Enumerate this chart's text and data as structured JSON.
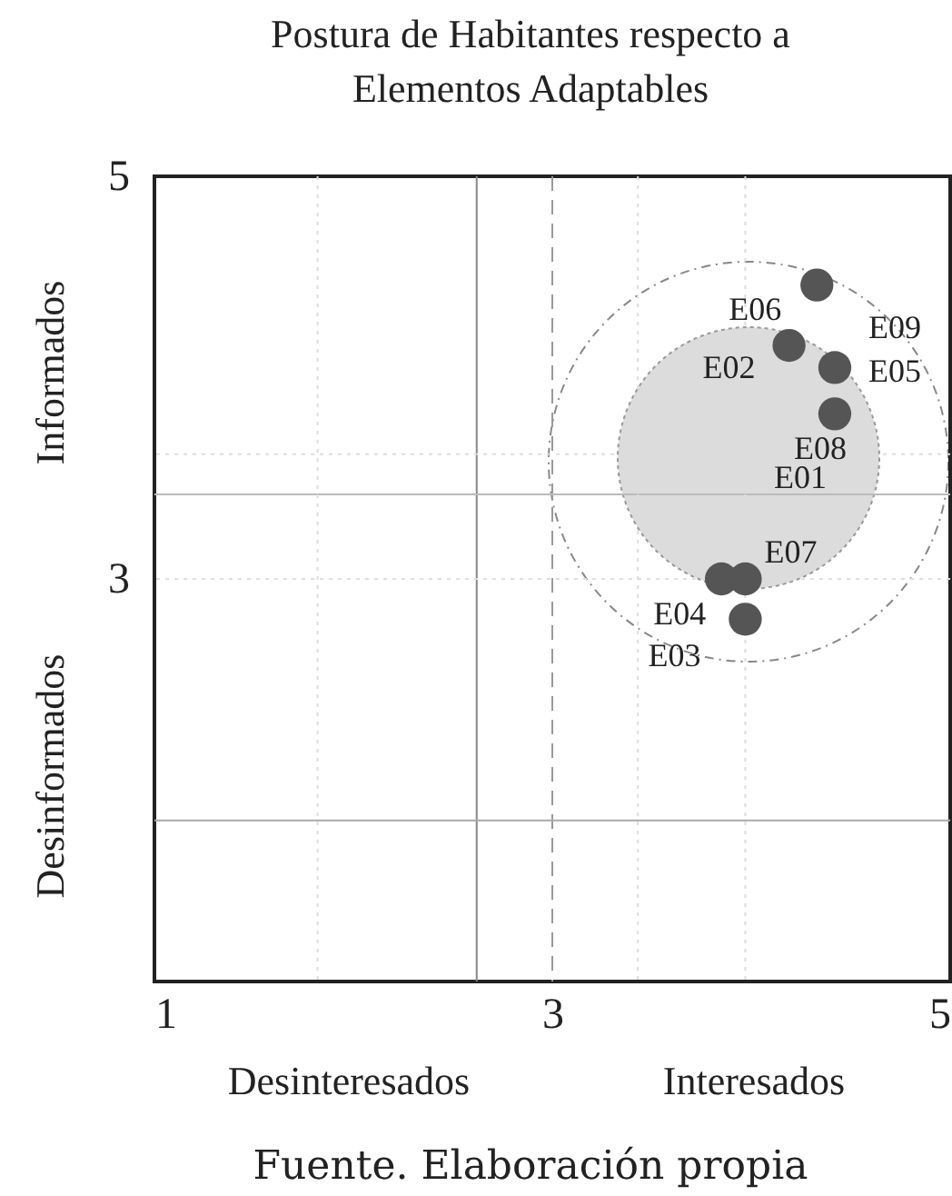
{
  "chart_data": {
    "type": "scatter",
    "title": "Postura de Habitantes respecto a Elementos Adaptables",
    "x": [
      4.33,
      4.19,
      4.42,
      4.42,
      3.85,
      3.97,
      3.97
    ],
    "values": [
      4.46,
      4.16,
      4.05,
      3.82,
      3.0,
      3.0,
      2.8
    ],
    "color": "#555555",
    "marker": "circle",
    "xlim": [
      1,
      5
    ],
    "ylim": [
      1,
      5
    ],
    "xticks": [
      1,
      3,
      5
    ],
    "yticks": [
      3,
      5
    ],
    "ref_lines": [
      {
        "axis": "x",
        "value": 2.62,
        "color": "#888888",
        "line_style": "solid"
      },
      {
        "axis": "x",
        "value": 3,
        "color": "#999999",
        "line_style": "dashed"
      },
      {
        "axis": "y",
        "value": 3.42,
        "color": "#bbbbbb",
        "line_style": "solid"
      },
      {
        "axis": "y",
        "value": 1.8,
        "color": "#aaaaaa",
        "line_style": "solid"
      },
      {
        "axis": "x",
        "value": 1.82,
        "color": "#dddddd",
        "line_style": "dotted"
      },
      {
        "axis": "x",
        "value": 3.43,
        "color": "#dddddd",
        "line_style": "dotted"
      },
      {
        "axis": "x",
        "value": 3.97,
        "color": "#dddddd",
        "line_style": "dotted"
      },
      {
        "axis": "y",
        "value": 3.62,
        "color": "#dddddd",
        "line_style": "dotted"
      },
      {
        "axis": "y",
        "value": 3.0,
        "color": "#dddddd",
        "line_style": "dotted"
      }
    ],
    "annotations": [
      {
        "text": "E06",
        "x": 4.33,
        "y": 4.46
      },
      {
        "text": "E02",
        "x": 4.19,
        "y": 4.16
      },
      {
        "text": "E09",
        "x": 4.42,
        "y": 4.05
      },
      {
        "text": "E05",
        "x": 4.42,
        "y": 4.05
      },
      {
        "text": "E08",
        "x": 4.42,
        "y": 3.82
      },
      {
        "text": "E01",
        "x": 4.42,
        "y": 3.82
      },
      {
        "text": "E07",
        "x": 3.97,
        "y": 3.0
      },
      {
        "text": "E04",
        "x": 3.85,
        "y": 3.0
      },
      {
        "text": "E03",
        "x": 3.97,
        "y": 2.8
      },
      "Desinteresados",
      "Interesados",
      "Desinformados",
      "Informados",
      "Fuente.  Elaboración propia"
    ]
  }
}
